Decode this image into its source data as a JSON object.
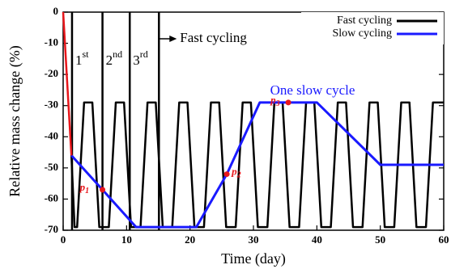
{
  "chart_data": {
    "type": "line",
    "xlabel": "Time (day)",
    "ylabel": "Relative mass change (%)",
    "xlim": [
      0,
      60
    ],
    "ylim": [
      -70,
      0
    ],
    "xticks": [
      0,
      10,
      20,
      30,
      40,
      50,
      60
    ],
    "yticks": [
      -70,
      -60,
      -50,
      -40,
      -30,
      -20,
      -10,
      0
    ],
    "legend": "upper right",
    "initial": {
      "color": "#e8161b",
      "x": [
        0,
        1.3
      ],
      "values": [
        0,
        -46
      ]
    },
    "series": [
      {
        "name": "Fast cycling",
        "color": "#000000",
        "x": [
          1.3,
          1.8,
          2.2,
          3.3,
          4.6,
          5.7,
          7.2,
          8.3,
          9.6,
          10.7,
          12.2,
          13.3,
          14.6,
          15.7,
          17.2,
          18.3,
          19.6,
          20.7,
          22.2,
          23.3,
          24.6,
          25.7,
          27.2,
          28.3,
          29.6,
          30.7,
          32.2,
          33.3,
          34.6,
          35.7,
          37.2,
          38.3,
          39.6,
          40.7,
          42.2,
          43.3,
          44.6,
          45.7,
          47.2,
          48.3,
          49.6,
          50.7,
          52.2,
          53.3,
          54.6,
          55.7,
          57.2,
          58.3,
          60
        ],
        "values": [
          -46,
          -69,
          -69,
          -29,
          -29,
          -69,
          -69,
          -29,
          -29,
          -69,
          -69,
          -29,
          -29,
          -69,
          -69,
          -29,
          -29,
          -69,
          -69,
          -29,
          -29,
          -69,
          -69,
          -29,
          -29,
          -69,
          -69,
          -29,
          -29,
          -69,
          -69,
          -29,
          -29,
          -69,
          -69,
          -29,
          -29,
          -69,
          -69,
          -29,
          -29,
          -69,
          -69,
          -29,
          -29,
          -69,
          -69,
          -29,
          -29
        ]
      },
      {
        "name": "Slow cycling",
        "color": "#1a1aff",
        "x": [
          1.3,
          6.2,
          11.5,
          21,
          25.8,
          31,
          35.5,
          40,
          50,
          60
        ],
        "values": [
          -46,
          -57,
          -69,
          -69,
          -52,
          -29,
          -29,
          -29,
          -49,
          -49
        ]
      }
    ],
    "cycle_lines": [
      {
        "x": 1.4,
        "base": "1",
        "sup": "st"
      },
      {
        "x": 6.2,
        "base": "2",
        "sup": "nd"
      },
      {
        "x": 10.5,
        "base": "3",
        "sup": "rd"
      },
      {
        "x": 15.1
      }
    ],
    "arrow_text": "Fast cycling",
    "slow_text": "One slow cycle",
    "points": [
      {
        "base": "p",
        "sub": "1",
        "x": 6.2,
        "y": -57
      },
      {
        "base": "p",
        "sub": "2",
        "x": 25.8,
        "y": -52
      },
      {
        "base": "p",
        "sub": "3",
        "x": 35.5,
        "y": -29
      }
    ]
  }
}
